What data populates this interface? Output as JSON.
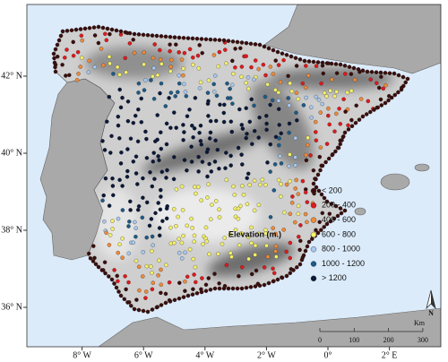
{
  "map": {
    "lat_ticks": [
      {
        "value": 42,
        "label": "42° N"
      },
      {
        "value": 40,
        "label": "40° N"
      },
      {
        "value": 38,
        "label": "38° N"
      },
      {
        "value": 36,
        "label": "36° N"
      }
    ],
    "lon_ticks": [
      {
        "value": -8,
        "label": "8° W"
      },
      {
        "value": -6,
        "label": "6° W"
      },
      {
        "value": -4,
        "label": "4° W"
      },
      {
        "value": -2,
        "label": "2° W"
      },
      {
        "value": 0,
        "label": "0°"
      },
      {
        "value": 2,
        "label": "2° E"
      }
    ],
    "legend": {
      "title": "Elevation (m.)",
      "classes": [
        {
          "label": "< 200",
          "color": "#3a0d0d"
        },
        {
          "label": "200 - 400",
          "color": "#e0191c"
        },
        {
          "label": "400 - 600",
          "color": "#ef8a3a"
        },
        {
          "label": "600 - 800",
          "color": "#f4f06a"
        },
        {
          "label": "800 - 1000",
          "color": "#a8c8ee"
        },
        {
          "label": "1000 - 1200",
          "color": "#1d5a86"
        },
        {
          "label": "> 1200",
          "color": "#0b1838"
        }
      ]
    },
    "scale_bar": {
      "ticks": [
        0,
        100,
        200,
        300
      ],
      "unit": "Km"
    },
    "north": "N"
  }
}
